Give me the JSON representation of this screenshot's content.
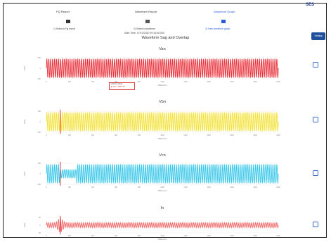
{
  "nav": {
    "tab_pq": "PQ Report",
    "tab_wave": "Waveform Report",
    "tab_graph": "Waveform Graph"
  },
  "logo": {
    "text": "SES",
    "sub": ""
  },
  "actions": {
    "upload": "1) Select a Fig report",
    "select": "2) Select a waveform",
    "view": "3) View waveform graph"
  },
  "start_time": "Start Time: 07/10/2020 09:15:45.000",
  "title": "Waveform Sag and Overlap",
  "setting_label": "Setting",
  "tooltip": {
    "title": "(31.94 mSec)",
    "row": "◆ Van : 283.375"
  },
  "colors": {
    "van": "#e8303a",
    "vbn": "#f3e23a",
    "vcn": "#38c7e8",
    "in": "#ef6b6b",
    "marker": "#e8303a",
    "accent": "#2a5bd7"
  },
  "chart_data": [
    {
      "type": "line",
      "title": "Van",
      "ylabel": "Value",
      "xlabel": "Millisecond",
      "yticks": [
        "150",
        "0",
        "-150"
      ],
      "xticks": [
        "0",
        "200",
        "400",
        "600",
        "800",
        "1000",
        "1200",
        "1400",
        "1600",
        "1800",
        "2000"
      ],
      "series": [
        {
          "name": "Van",
          "amplitude": 150,
          "frequency_hz": 60,
          "duration_ms": 2000
        }
      ],
      "marker_x": null
    },
    {
      "type": "line",
      "title": "Vbn",
      "ylabel": "Value",
      "xlabel": "Millisecond",
      "yticks": [
        "150",
        "0",
        "-150"
      ],
      "xticks": [
        "0",
        "200",
        "400",
        "600",
        "800",
        "1000",
        "1200",
        "1400",
        "1600",
        "1800",
        "2000"
      ],
      "series": [
        {
          "name": "Vbn",
          "amplitude": 150,
          "frequency_hz": 60,
          "duration_ms": 2000
        }
      ],
      "marker_x": 120
    },
    {
      "type": "line",
      "title": "Vcn",
      "ylabel": "Value",
      "xlabel": "Millisecond",
      "yticks": [
        "150",
        "0",
        "-150"
      ],
      "xticks": [
        "0",
        "200",
        "400",
        "600",
        "800",
        "1000",
        "1200",
        "1400",
        "1600",
        "1800",
        "2000"
      ],
      "series": [
        {
          "name": "Vcn",
          "amplitude": 150,
          "frequency_hz": 60,
          "duration_ms": 2000,
          "sag_start_ms": 120,
          "sag_end_ms": 260
        }
      ],
      "marker_x": 120
    },
    {
      "type": "line",
      "title": "In",
      "ylabel": "Value",
      "xlabel": "Millisecond",
      "yticks": [
        "30",
        "0",
        "-30"
      ],
      "xticks": [
        "0",
        "200",
        "400",
        "600",
        "800",
        "1000",
        "1200",
        "1400",
        "1600",
        "1800",
        "2000"
      ],
      "series": [
        {
          "name": "In",
          "amplitude": 6,
          "frequency_hz": 60,
          "duration_ms": 2000,
          "spike_ms": 120
        }
      ],
      "marker_x": 120
    }
  ]
}
